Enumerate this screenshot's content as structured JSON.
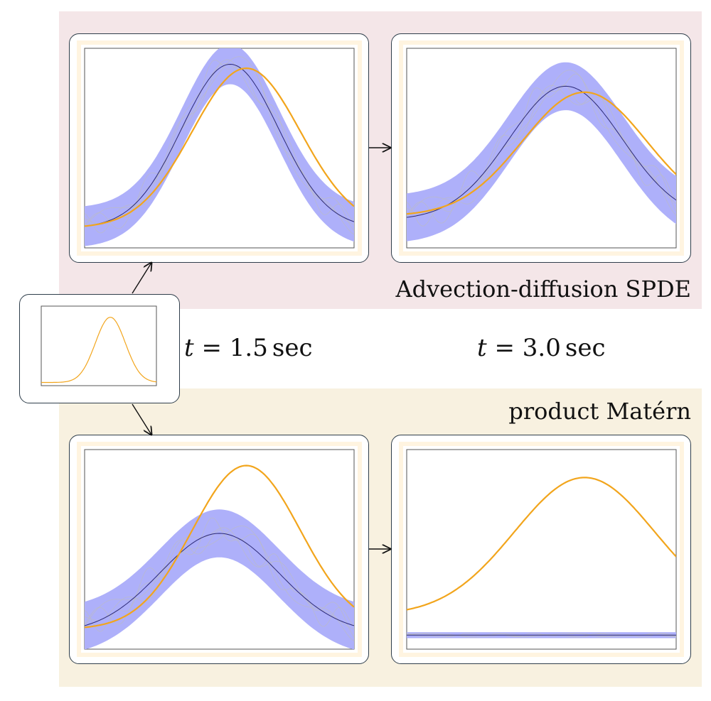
{
  "labels": {
    "top_group": "Advection-diffusion SPDE",
    "bottom_group": "product Matérn",
    "time_1": {
      "var": "t",
      "eq": "=",
      "value": "1.5",
      "unit": "sec"
    },
    "time_2": {
      "var": "t",
      "eq": "=",
      "value": "3.0",
      "unit": "sec"
    }
  },
  "colors": {
    "top_background": "#f4e6e8",
    "bottom_background": "#f8f1e0",
    "truth_curve": "#f2a51c",
    "posterior_mean": "#2c2a78",
    "credible_band": "#aeb0fa",
    "samples": "#bdbdbd"
  },
  "panels": {
    "initial": {
      "truth": {
        "peak": 0.6,
        "width": 0.13,
        "amp": 0.82,
        "base": 0.04
      }
    },
    "spde_t1": {
      "truth": {
        "peak": 0.6,
        "width": 0.2,
        "amp": 0.8,
        "base": 0.1
      },
      "mean": {
        "peak": 0.54,
        "width": 0.18,
        "amp": 0.82,
        "base": 0.1
      },
      "band_halfwidth": 0.1
    },
    "spde_t2": {
      "truth": {
        "peak": 0.66,
        "width": 0.23,
        "amp": 0.62,
        "base": 0.16
      },
      "mean": {
        "peak": 0.59,
        "width": 0.21,
        "amp": 0.67,
        "base": 0.14
      },
      "band_halfwidth": 0.12
    },
    "matern_t1": {
      "truth": {
        "peak": 0.6,
        "width": 0.2,
        "amp": 0.82,
        "base": 0.1
      },
      "mean": {
        "peak": 0.5,
        "width": 0.22,
        "amp": 0.5,
        "base": 0.08
      },
      "band_halfwidth": 0.12
    },
    "matern_t2": {
      "truth": {
        "peak": 0.66,
        "width": 0.26,
        "amp": 0.69,
        "base": 0.17
      },
      "mean": {
        "peak": 0.5,
        "width": 0.3,
        "amp": 0.0,
        "base": 0.07
      },
      "band_halfwidth": 0.015
    }
  }
}
